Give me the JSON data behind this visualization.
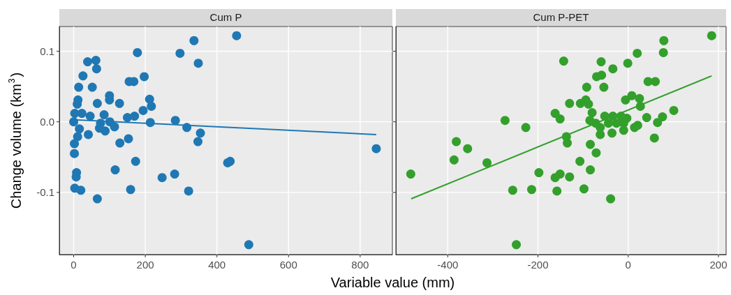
{
  "chart_data": [
    {
      "type": "scatter",
      "title": "Cum P",
      "ylabel": "Change volume (km$^{3}$)",
      "xlabel": "Variable value (mm)",
      "xlim": [
        -40,
        890
      ],
      "xticks": [
        0,
        200,
        400,
        600,
        800
      ],
      "ylim": [
        -0.188,
        0.135
      ],
      "yticks": [
        -0.1,
        {
          "value": 0,
          "label": "0.0"
        },
        0.1
      ],
      "grid": true,
      "series": [
        {
          "marker": "circle",
          "color": "#1f78b4",
          "x": [
            336,
            178,
            297,
            348,
            39,
            62,
            64,
            26,
            197,
            155,
            168,
            14,
            52,
            12,
            100,
            100,
            66,
            128,
            10,
            212,
            217,
            194,
            3,
            23,
            46,
            85,
            150,
            170,
            284,
            214,
            0,
            75,
            101,
            114,
            72,
            88,
            16,
            316,
            41,
            11,
            354,
            347,
            153,
            129,
            2,
            2,
            173,
            116,
            8,
            7,
            282,
            247,
            3,
            20,
            159,
            321,
            66,
            455,
            437,
            430,
            489,
            845
          ],
          "values": [
            0.115,
            0.098,
            0.097,
            0.083,
            0.085,
            0.087,
            0.075,
            0.065,
            0.064,
            0.057,
            0.057,
            0.049,
            0.049,
            0.031,
            0.037,
            0.031,
            0.026,
            0.026,
            0.025,
            0.032,
            0.022,
            0.016,
            0.012,
            0.012,
            0.008,
            0.01,
            0.006,
            0.008,
            0.002,
            -0.001,
            0,
            -0.002,
            0,
            -0.007,
            -0.009,
            -0.013,
            -0.01,
            -0.008,
            -0.018,
            -0.021,
            -0.016,
            -0.028,
            -0.024,
            -0.03,
            -0.031,
            -0.045,
            -0.056,
            -0.068,
            -0.072,
            -0.078,
            -0.074,
            -0.079,
            -0.094,
            -0.097,
            -0.096,
            -0.098,
            -0.109,
            0.122,
            -0.056,
            -0.058,
            -0.174,
            -0.038
          ]
        },
        {
          "type": "line",
          "marker": "none",
          "color": "#1f78b4",
          "x": [
            0,
            845
          ],
          "values": [
            0.003,
            -0.018
          ]
        }
      ]
    },
    {
      "type": "scatter",
      "title": "Cum P-PET",
      "tick_labels": "x",
      "xlim": [
        -515,
        217
      ],
      "xticks": [
        -400,
        -200,
        0,
        200
      ],
      "ylim": [
        -0.188,
        0.135
      ],
      "yticks": [
        -0.1,
        0,
        0.1
      ],
      "grid": true,
      "series": [
        {
          "marker": "circle",
          "color": "#33a02c",
          "x": [
            -482,
            -381,
            -356,
            -386,
            -313,
            -273,
            -227,
            -256,
            -214,
            -248,
            -198,
            -162,
            -151,
            -162,
            -151,
            -158,
            -143,
            -130,
            -137,
            -135,
            -130,
            -107,
            -98,
            -84,
            -84,
            -71,
            -39,
            -92,
            -106,
            -94,
            -88,
            -80,
            -85,
            -72,
            -62,
            -62,
            -70,
            -59,
            -60,
            -54,
            -34,
            -52,
            -34,
            -16,
            -44,
            -26,
            -10,
            -36,
            -10,
            -3,
            -1,
            20,
            -6,
            8,
            25,
            27,
            14,
            21,
            41,
            44,
            60,
            65,
            76,
            58,
            101,
            79,
            78,
            185
          ],
          "values": [
            -0.074,
            -0.028,
            -0.038,
            -0.054,
            -0.058,
            0.002,
            -0.008,
            -0.097,
            -0.096,
            -0.174,
            -0.072,
            0.012,
            0.004,
            -0.079,
            -0.074,
            -0.098,
            0.086,
            -0.078,
            -0.021,
            -0.03,
            0.026,
            -0.056,
            -0.095,
            -0.068,
            -0.032,
            -0.044,
            -0.109,
            0.049,
            0.026,
            0.031,
            0.025,
            0.013,
            0.002,
            -0.002,
            -0.008,
            -0.018,
            0.064,
            0.066,
            0.085,
            0.049,
            0.075,
            0.008,
            0.008,
            0.008,
            -0.002,
            -0.002,
            -0.002,
            -0.016,
            -0.012,
            0.005,
            0.083,
            0.097,
            0.031,
            0.037,
            0.033,
            0.022,
            -0.008,
            -0.005,
            0.006,
            0.057,
            0.057,
            -0.001,
            0.007,
            -0.023,
            0.016,
            0.115,
            0.098,
            0.122
          ]
        },
        {
          "type": "line",
          "marker": "none",
          "color": "#33a02c",
          "x": [
            -481,
            185
          ],
          "values": [
            -0.109,
            0.065
          ]
        }
      ]
    }
  ]
}
